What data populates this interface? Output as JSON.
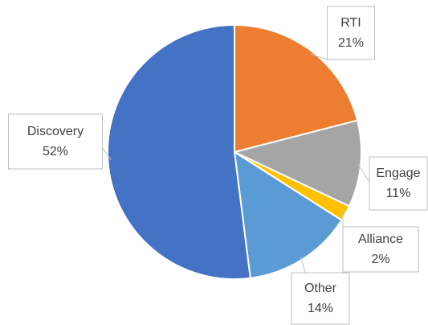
{
  "chart_data": {
    "type": "pie",
    "categories": [
      "RTI",
      "Engage",
      "Alliance",
      "Other",
      "Discovery"
    ],
    "values": [
      21,
      11,
      2,
      14,
      52
    ],
    "value_labels": [
      "21%",
      "11%",
      "2%",
      "14%",
      "52%"
    ],
    "colors": [
      "#ed7d31",
      "#a5a5a5",
      "#ffc000",
      "#5b9bd5",
      "#4472c4"
    ]
  }
}
